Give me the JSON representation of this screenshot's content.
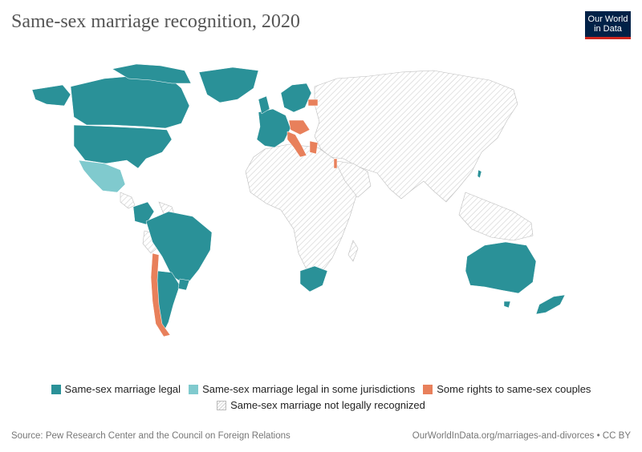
{
  "title": "Same-sex marriage recognition, 2020",
  "logo": {
    "line1": "Our World",
    "line2": "in Data",
    "bg": "#002147",
    "accent": "#ce261e"
  },
  "colors": {
    "legal": "#2a9198",
    "partial": "#80cace",
    "some_rights": "#e8805b",
    "not_recognized": "hatched"
  },
  "legend": [
    {
      "label": "Same-sex marriage legal",
      "key": "legal"
    },
    {
      "label": "Same-sex marriage legal in some jurisdictions",
      "key": "partial"
    },
    {
      "label": "Some rights to same-sex couples",
      "key": "some_rights"
    },
    {
      "label": "Same-sex marriage not legally recognized",
      "key": "not_recognized"
    }
  ],
  "regions": {
    "legal": [
      "Canada",
      "United States",
      "Greenland",
      "Colombia",
      "Ecuador",
      "Brazil",
      "Argentina",
      "Uruguay",
      "Western Europe",
      "Nordic countries",
      "South Africa",
      "Australia",
      "New Zealand",
      "Taiwan"
    ],
    "partial": [
      "Mexico"
    ],
    "some_rights": [
      "Chile",
      "Italy",
      "Central Europe",
      "Greece",
      "Estonia",
      "Israel"
    ]
  },
  "source": "Source: Pew Research Center and the Council on Foreign Relations",
  "attribution": "OurWorldInData.org/marriages-and-divorces • CC BY"
}
